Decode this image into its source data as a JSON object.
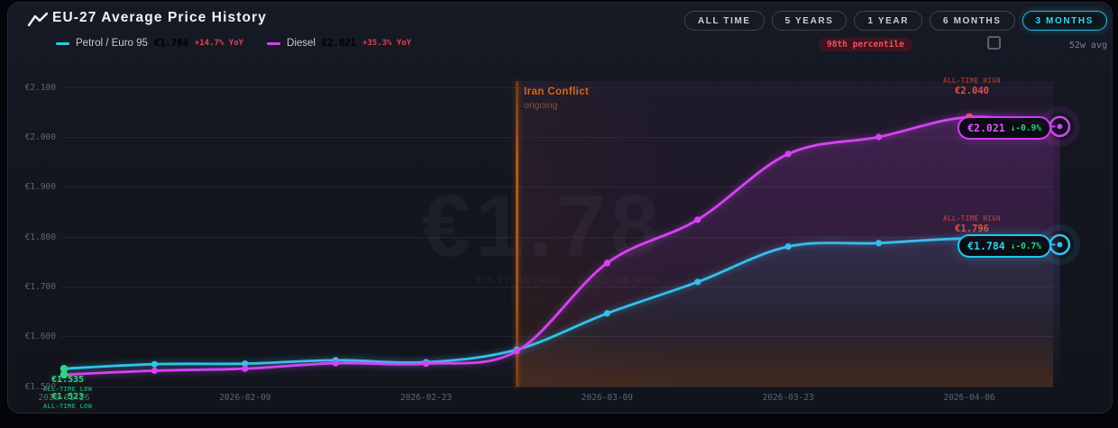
{
  "header": {
    "title": "EU-27 Average Price History",
    "legend": [
      {
        "name": "Petrol / Euro 95",
        "value": "€1.784",
        "yoy": "+14.7% YoY",
        "color": "#2ac9e9"
      },
      {
        "name": "Diesel",
        "value": "€2.021",
        "yoy": "+35.3% YoY",
        "color": "#d643f3"
      }
    ]
  },
  "toolbar": {
    "ranges": [
      "ALL TIME",
      "5 YEARS",
      "1 YEAR",
      "6 MONTHS",
      "3 MONTHS"
    ],
    "active_range": "3 MONTHS",
    "percentile_badge": "98th percentile",
    "avg_toggle_label": "52w avg",
    "avg_toggle_checked": false
  },
  "chart_data": {
    "type": "line",
    "title": "EU-27 Average Price History",
    "currency": "EUR",
    "x_dates": [
      "2026-01-26",
      "2026-02-02",
      "2026-02-09",
      "2026-02-16",
      "2026-02-23",
      "2026-03-02",
      "2026-03-09",
      "2026-03-16",
      "2026-03-23",
      "2026-03-30",
      "2026-04-06",
      "2026-04-13"
    ],
    "x_tick_labels": [
      "2026-01-26",
      "2026-02-09",
      "2026-02-23",
      "2026-03-09",
      "2026-03-23",
      "2026-04-06"
    ],
    "y_ticks": [
      {
        "label": "€2.100",
        "value": 2.1
      },
      {
        "label": "€2.000",
        "value": 2.0
      },
      {
        "label": "€1.900",
        "value": 1.9
      },
      {
        "label": "€1.800",
        "value": 1.8
      },
      {
        "label": "€1.700",
        "value": 1.7
      },
      {
        "label": "€1.600",
        "value": 1.6
      },
      {
        "label": "€1.500",
        "value": 1.5
      }
    ],
    "ylim": [
      1.5,
      2.1
    ],
    "grid": true,
    "legend_position": "top-left",
    "series": [
      {
        "name": "Petrol / Euro 95",
        "color": "#2ac9e9",
        "values": [
          1.535,
          1.544,
          1.545,
          1.552,
          1.548,
          1.573,
          1.646,
          1.709,
          1.78,
          1.787,
          1.796,
          1.784
        ]
      },
      {
        "name": "Diesel",
        "color": "#d643f3",
        "values": [
          1.523,
          1.531,
          1.535,
          1.546,
          1.545,
          1.57,
          1.747,
          1.834,
          1.966,
          2.0,
          2.04,
          2.021
        ]
      }
    ],
    "event_line": {
      "label": "Iran Conflict",
      "sublabel": "ongoing",
      "x_index": 5
    },
    "point_highlights": {
      "low_index": 0,
      "low_color": "#2fd584",
      "high_index": 10,
      "high_color": "#f3543f"
    }
  },
  "annotations": {
    "diesel_high": {
      "title": "ALL-TIME HIGH",
      "value": "€2.040"
    },
    "petrol_high": {
      "title": "ALL-TIME HIGH",
      "value": "€1.796"
    },
    "petrol_low": {
      "value": "€1.535",
      "title": "ALL-TIME LOW"
    },
    "diesel_low": {
      "value": "€1.523",
      "title": "ALL-TIME LOW"
    },
    "diesel_current": {
      "value": "€2.021",
      "change": "↓-0.9%"
    },
    "petrol_current": {
      "value": "€1.784",
      "change": "↓-0.7%"
    }
  },
  "watermark": {
    "value": "€1.78",
    "label": "EU-27 PETROL / EURO 95 AVG"
  }
}
